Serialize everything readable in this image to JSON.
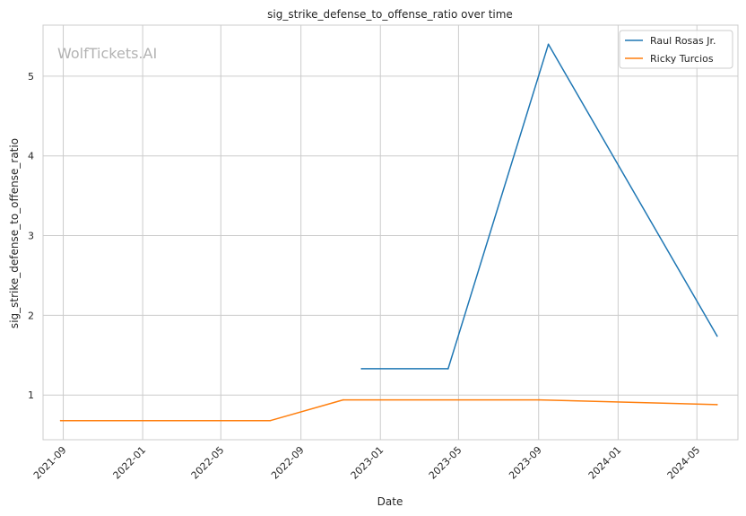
{
  "watermark": "WolfTickets.AI",
  "chart_data": {
    "type": "line",
    "title": "sig_strike_defense_to_offense_ratio over time",
    "xlabel": "Date",
    "ylabel": "sig_strike_defense_to_offense_ratio",
    "x_range": [
      "2021-08-01",
      "2024-07-03"
    ],
    "ylim": [
      0.44,
      5.64
    ],
    "x_ticks": [
      "2021-09-01",
      "2022-01-01",
      "2022-05-01",
      "2022-09-01",
      "2023-01-01",
      "2023-05-01",
      "2023-09-01",
      "2024-01-01",
      "2024-05-01"
    ],
    "x_tick_labels": [
      "2021-09",
      "2022-01",
      "2022-05",
      "2022-09",
      "2023-01",
      "2023-05",
      "2023-09",
      "2024-01",
      "2024-05"
    ],
    "y_ticks": [
      1,
      2,
      3,
      4,
      5
    ],
    "y_tick_labels": [
      "1",
      "2",
      "3",
      "4",
      "5"
    ],
    "grid": true,
    "legend_position": "top-right",
    "series": [
      {
        "name": "Raul Rosas Jr.",
        "color": "#1f77b4",
        "points": [
          {
            "x": "2022-12-03",
            "y": 1.33
          },
          {
            "x": "2023-04-15",
            "y": 1.33
          },
          {
            "x": "2023-09-16",
            "y": 5.4
          },
          {
            "x": "2024-06-01",
            "y": 1.74
          }
        ]
      },
      {
        "name": "Ricky Turcios",
        "color": "#ff7f0e",
        "points": [
          {
            "x": "2021-08-28",
            "y": 0.68
          },
          {
            "x": "2022-07-16",
            "y": 0.68
          },
          {
            "x": "2022-11-05",
            "y": 0.94
          },
          {
            "x": "2023-09-02",
            "y": 0.94
          },
          {
            "x": "2024-06-01",
            "y": 0.88
          }
        ]
      }
    ]
  }
}
